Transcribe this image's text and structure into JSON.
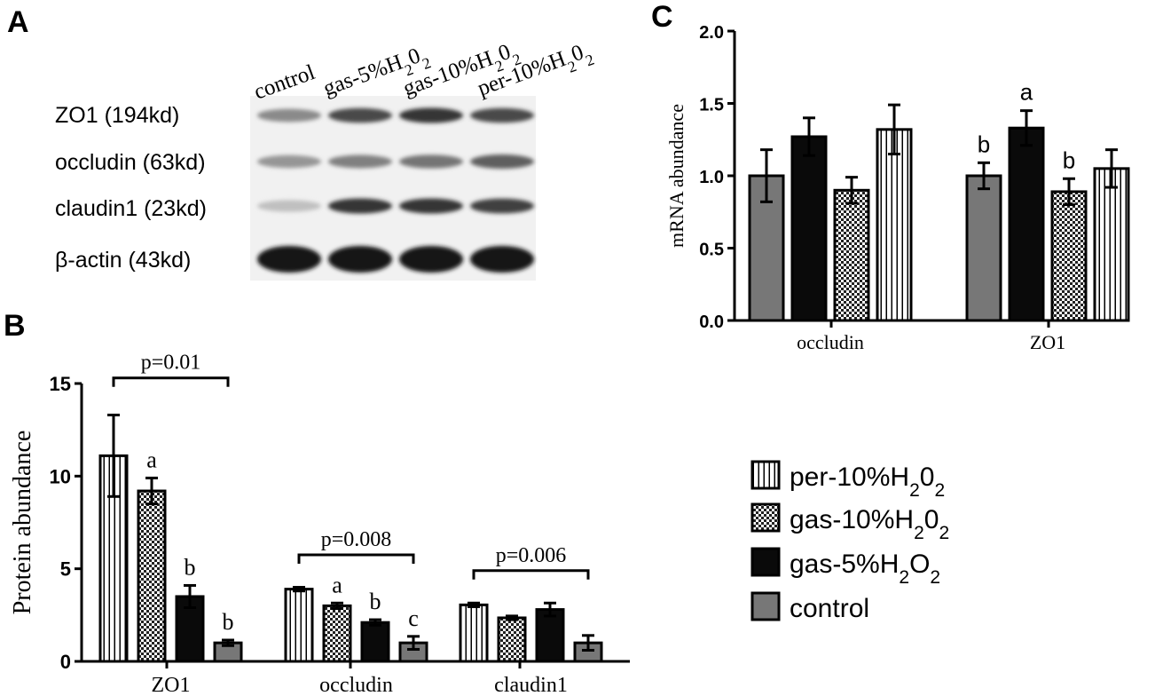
{
  "colors": {
    "control": "#777777",
    "gas5": "#0a0a0a",
    "gas10": "#ffffff",
    "per10": "#ffffff",
    "axis": "#000000"
  },
  "panel_letters": [
    "A",
    "B",
    "C"
  ],
  "western_blot": {
    "lanes": [
      {
        "pre": "control",
        "sub": "",
        "post": ""
      },
      {
        "pre": "gas-5%H",
        "sub": "2",
        "post": "0",
        "sub2": "2"
      },
      {
        "pre": "gas-10%H",
        "sub": "2",
        "post": "0",
        "sub2": "2"
      },
      {
        "pre": "per-10%H",
        "sub": "2",
        "post": "0",
        "sub2": "2"
      }
    ],
    "rows": [
      {
        "label": "ZO1 (194kd)",
        "intensity": [
          0.45,
          0.75,
          0.85,
          0.75
        ]
      },
      {
        "label": "occludin (63kd)",
        "intensity": [
          0.4,
          0.5,
          0.55,
          0.65
        ]
      },
      {
        "label": "claudin1 (23kd)",
        "intensity": [
          0.2,
          0.85,
          0.85,
          0.8
        ]
      },
      {
        "label": "β-actin (43kd)",
        "intensity": [
          1.0,
          1.0,
          1.0,
          1.0
        ]
      }
    ]
  },
  "legend": {
    "entries": [
      {
        "key": "per10",
        "pre": "per-10%H",
        "sub": "2",
        "mid": "0",
        "sub2": "2",
        "pattern": "vlines"
      },
      {
        "key": "gas10",
        "pre": "gas-10%H",
        "sub": "2",
        "mid": "0",
        "sub2": "2",
        "pattern": "checker"
      },
      {
        "key": "gas5",
        "pre": "gas-5%H",
        "sub": "2",
        "mid": "O",
        "sub2": "2",
        "pattern": "solid-black"
      },
      {
        "key": "control",
        "pre": "control",
        "sub": "",
        "mid": "",
        "sub2": "",
        "pattern": "solid-grey"
      }
    ]
  },
  "chart_data": [
    {
      "panel": "B",
      "type": "bar",
      "ylabel": "Protein abundance",
      "xlabel": "",
      "ylim": [
        0,
        15
      ],
      "yticks": [
        0,
        5,
        10,
        15
      ],
      "categories": [
        "ZO1",
        "occludin",
        "claudin1"
      ],
      "series": [
        {
          "key": "per10",
          "values": [
            11.1,
            3.9,
            3.05
          ],
          "errors": [
            2.2,
            0.1,
            0.1
          ],
          "letters": [
            "",
            "",
            ""
          ]
        },
        {
          "key": "gas10",
          "values": [
            9.2,
            3.0,
            2.35
          ],
          "errors": [
            0.7,
            0.15,
            0.1
          ],
          "letters": [
            "a",
            "a",
            ""
          ]
        },
        {
          "key": "gas5",
          "values": [
            3.5,
            2.1,
            2.8
          ],
          "errors": [
            0.6,
            0.15,
            0.35
          ],
          "letters": [
            "b",
            "b",
            ""
          ]
        },
        {
          "key": "control",
          "values": [
            1.0,
            1.0,
            1.0
          ],
          "errors": [
            0.15,
            0.35,
            0.4
          ],
          "letters": [
            "b",
            "c",
            ""
          ]
        }
      ],
      "brackets": [
        {
          "category": 0,
          "label": "p=0.01",
          "y": 15.3
        },
        {
          "category": 1,
          "label": "p=0.008",
          "y": 5.75
        },
        {
          "category": 2,
          "label": "p=0.006",
          "y": 4.9
        }
      ]
    },
    {
      "panel": "C",
      "type": "bar",
      "ylabel": "mRNA abundance",
      "xlabel": "",
      "ylim": [
        0,
        2.0
      ],
      "yticks": [
        "0.0",
        "0.5",
        "1.0",
        "1.5",
        "2.0"
      ],
      "categories": [
        "occludin",
        "ZO1"
      ],
      "series": [
        {
          "key": "control",
          "values": [
            1.0,
            1.0
          ],
          "errors": [
            0.18,
            0.09
          ],
          "letters": [
            "",
            "b"
          ]
        },
        {
          "key": "gas5",
          "values": [
            1.27,
            1.33
          ],
          "errors": [
            0.13,
            0.12
          ],
          "letters": [
            "",
            "a"
          ]
        },
        {
          "key": "gas10",
          "values": [
            0.9,
            0.89
          ],
          "errors": [
            0.09,
            0.09
          ],
          "letters": [
            "",
            "b"
          ]
        },
        {
          "key": "per10",
          "values": [
            1.32,
            1.05
          ],
          "errors": [
            0.17,
            0.13
          ],
          "letters": [
            "",
            ""
          ]
        }
      ]
    }
  ]
}
